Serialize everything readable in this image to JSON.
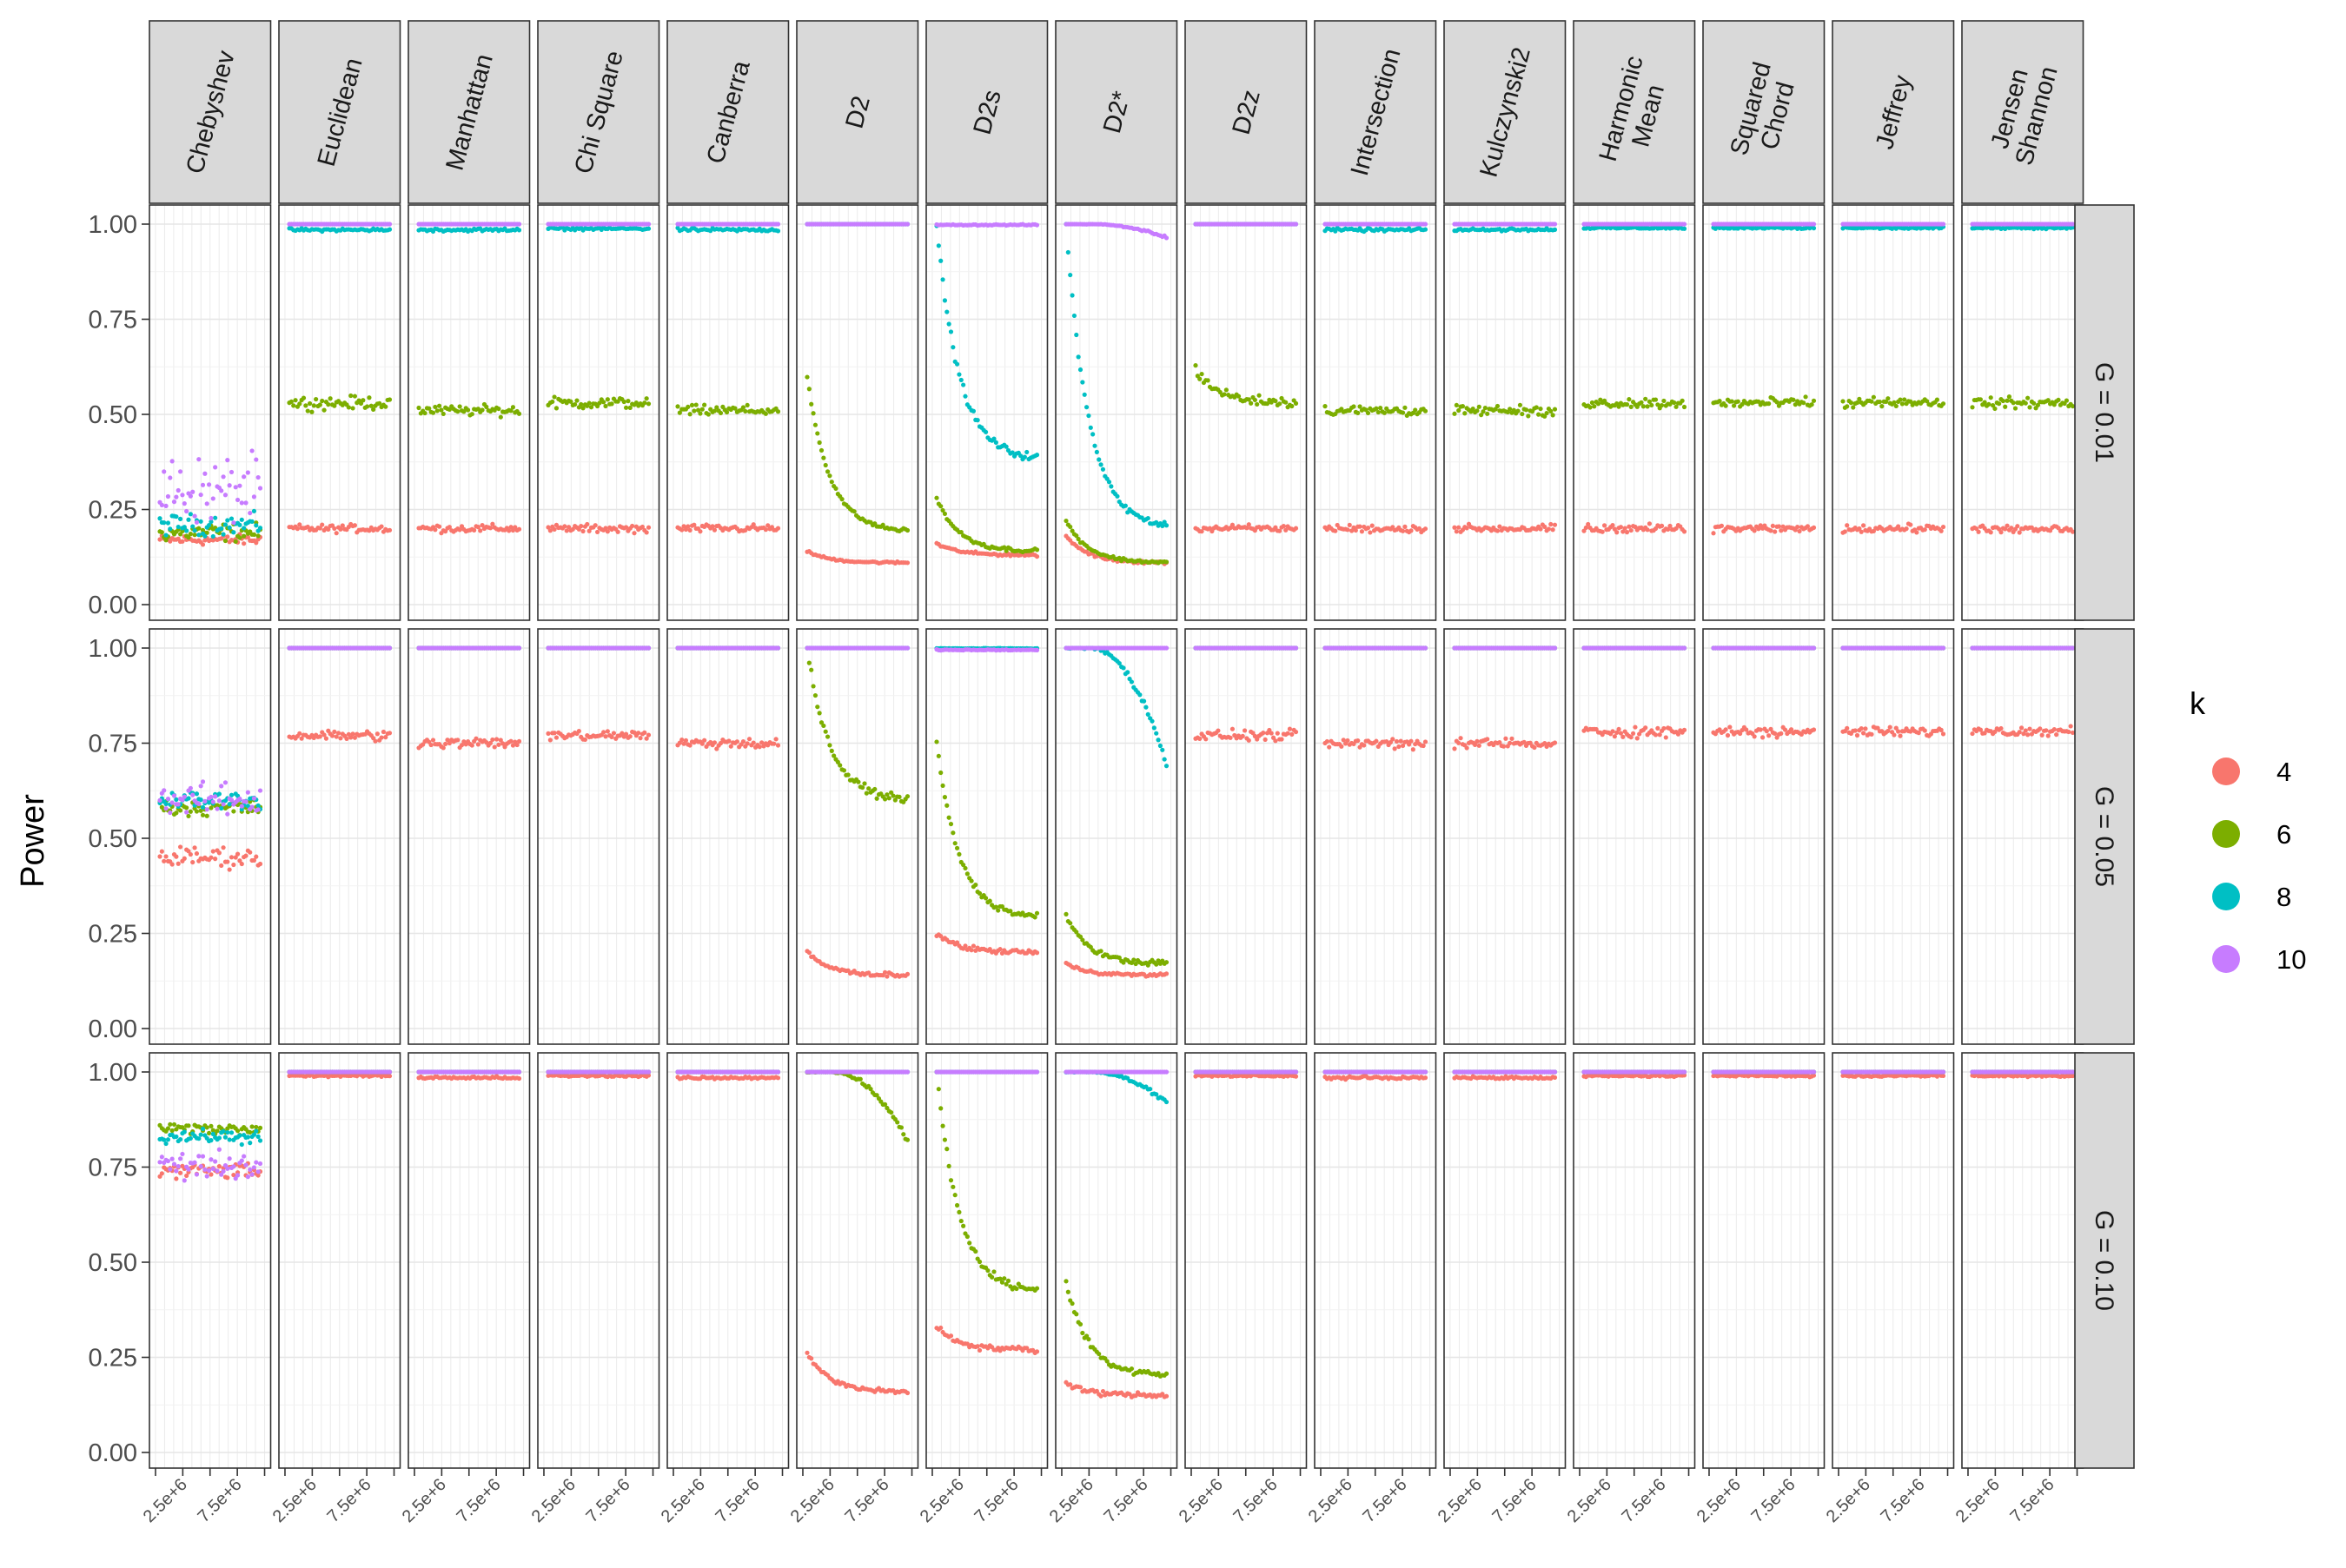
{
  "chart_data": {
    "type": "scatter",
    "facet_layout": "grid",
    "ylabel": "Power",
    "xlabel": "",
    "ylim": [
      0,
      1
    ],
    "xlim": [
      0,
      10000000
    ],
    "y_ticks": [
      "0.00",
      "0.25",
      "0.50",
      "0.75",
      "1.00"
    ],
    "y_tick_values": [
      0,
      0.25,
      0.5,
      0.75,
      1
    ],
    "x_ticks": [
      "2.5e+6",
      "7.5e+6"
    ],
    "x_tick_values": [
      2500000,
      7500000
    ],
    "grid": true,
    "columns": [
      "Chebyshev",
      "Euclidean",
      "Manhattan",
      "Chi Square",
      "Canberra",
      "D2",
      "D2s",
      "D2*",
      "D2z",
      "Intersection",
      "Kulczynski2",
      "Harmonic\nMean",
      "Squared\nChord",
      "Jeffrey",
      "Jensen\nShannon"
    ],
    "rows": [
      "G = 0.01",
      "G = 0.05",
      "G = 0.10"
    ],
    "legend": {
      "title": "k",
      "position": "right",
      "items": [
        {
          "label": "4",
          "color": "#F8766D"
        },
        {
          "label": "6",
          "color": "#7CAE00"
        },
        {
          "label": "8",
          "color": "#00BFC4"
        },
        {
          "label": "10",
          "color": "#C77CFF"
        }
      ]
    },
    "series_keys": [
      "4",
      "6",
      "8",
      "10"
    ],
    "description_of_x": "x runs from 0 to 1e7 with about 50 points per series",
    "curves": [
      [
        [
          [
            "flat",
            0.17,
            0.02
          ],
          [
            "flat",
            0.19,
            0.035
          ],
          [
            "flat",
            0.21,
            0.04
          ],
          [
            "flat",
            0.3,
            0.13
          ]
        ],
        [
          [
            "flat",
            0.2,
            0.015
          ],
          [
            "flat",
            0.53,
            0.025
          ],
          [
            "flat",
            0.985,
            0.006
          ],
          [
            "flat",
            1.0,
            0
          ]
        ],
        [
          [
            "flat",
            0.2,
            0.015
          ],
          [
            "flat",
            0.51,
            0.02
          ],
          [
            "flat",
            0.985,
            0.006
          ],
          [
            "flat",
            1.0,
            0
          ]
        ],
        [
          [
            "flat",
            0.2,
            0.015
          ],
          [
            "flat",
            0.53,
            0.022
          ],
          [
            "flat",
            0.988,
            0.005
          ],
          [
            "flat",
            1.0,
            0
          ]
        ],
        [
          [
            "flat",
            0.2,
            0.015
          ],
          [
            "flat",
            0.51,
            0.02
          ],
          [
            "flat",
            0.985,
            0.006
          ],
          [
            "flat",
            1.0,
            0
          ]
        ],
        [
          [
            "decay",
            0.14,
            0.11,
            0.004
          ],
          [
            "decay",
            0.6,
            0.19,
            0.008
          ],
          [
            "flat",
            1.0,
            0
          ],
          [
            "flat",
            1.0,
            0
          ]
        ],
        [
          [
            "decay",
            0.16,
            0.13,
            0.005
          ],
          [
            "decay",
            0.28,
            0.14,
            0.008
          ],
          [
            "decay",
            1.0,
            0.38,
            0.015
          ],
          [
            "flat",
            0.998,
            0.002
          ]
        ],
        [
          [
            "decay",
            0.18,
            0.11,
            0.006
          ],
          [
            "decay",
            0.22,
            0.11,
            0.006
          ],
          [
            "decay",
            1.0,
            0.2,
            0.012
          ],
          [
            "late",
            1.0,
            0.965,
            0.003
          ]
        ],
        [
          [
            "flat",
            0.2,
            0.015
          ],
          [
            "decay",
            0.62,
            0.53,
            0.02
          ],
          [
            "flat",
            1.0,
            0
          ],
          [
            "flat",
            1.0,
            0
          ]
        ],
        [
          [
            "flat",
            0.2,
            0.015
          ],
          [
            "flat",
            0.51,
            0.02
          ],
          [
            "flat",
            0.985,
            0.006
          ],
          [
            "flat",
            1.0,
            0
          ]
        ],
        [
          [
            "flat",
            0.2,
            0.015
          ],
          [
            "flat",
            0.51,
            0.02
          ],
          [
            "flat",
            0.985,
            0.006
          ],
          [
            "flat",
            1.0,
            0
          ]
        ],
        [
          [
            "flat",
            0.2,
            0.015
          ],
          [
            "flat",
            0.53,
            0.02
          ],
          [
            "flat",
            0.99,
            0.004
          ],
          [
            "flat",
            1.0,
            0
          ]
        ],
        [
          [
            "flat",
            0.2,
            0.015
          ],
          [
            "flat",
            0.53,
            0.02
          ],
          [
            "flat",
            0.99,
            0.004
          ],
          [
            "flat",
            1.0,
            0
          ]
        ],
        [
          [
            "flat",
            0.2,
            0.015
          ],
          [
            "flat",
            0.53,
            0.02
          ],
          [
            "flat",
            0.99,
            0.004
          ],
          [
            "flat",
            1.0,
            0
          ]
        ],
        [
          [
            "flat",
            0.2,
            0.015
          ],
          [
            "flat",
            0.53,
            0.02
          ],
          [
            "flat",
            0.99,
            0.004
          ],
          [
            "flat",
            1.0,
            0
          ]
        ]
      ],
      [
        [
          [
            "flat",
            0.45,
            0.04
          ],
          [
            "flat",
            0.58,
            0.03
          ],
          [
            "flat",
            0.6,
            0.035
          ],
          [
            "flat",
            0.6,
            0.06
          ]
        ],
        [
          [
            "flat",
            0.77,
            0.02
          ],
          [
            "flat",
            1.0,
            0
          ],
          [
            "flat",
            1.0,
            0
          ],
          [
            "flat",
            1.0,
            0
          ]
        ],
        [
          [
            "flat",
            0.75,
            0.02
          ],
          [
            "flat",
            1.0,
            0
          ],
          [
            "flat",
            1.0,
            0
          ],
          [
            "flat",
            1.0,
            0
          ]
        ],
        [
          [
            "flat",
            0.77,
            0.02
          ],
          [
            "flat",
            1.0,
            0
          ],
          [
            "flat",
            1.0,
            0
          ],
          [
            "flat",
            1.0,
            0
          ]
        ],
        [
          [
            "flat",
            0.75,
            0.02
          ],
          [
            "flat",
            1.0,
            0
          ],
          [
            "flat",
            1.0,
            0
          ],
          [
            "flat",
            1.0,
            0
          ]
        ],
        [
          [
            "decay",
            0.2,
            0.14,
            0.008
          ],
          [
            "decay",
            1.0,
            0.6,
            0.015
          ],
          [
            "flat",
            1.0,
            0
          ],
          [
            "flat",
            1.0,
            0
          ]
        ],
        [
          [
            "decay",
            0.25,
            0.2,
            0.01
          ],
          [
            "decay",
            0.75,
            0.29,
            0.012
          ],
          [
            "flat",
            0.999,
            0.001
          ],
          [
            "flat",
            0.995,
            0.002
          ]
        ],
        [
          [
            "decay",
            0.17,
            0.14,
            0.006
          ],
          [
            "decay",
            0.3,
            0.17,
            0.01
          ],
          [
            "late",
            1.0,
            0.7,
            0.015
          ],
          [
            "flat",
            1.0,
            0
          ]
        ],
        [
          [
            "flat",
            0.77,
            0.02
          ],
          [
            "flat",
            1.0,
            0
          ],
          [
            "flat",
            1.0,
            0
          ],
          [
            "flat",
            1.0,
            0
          ]
        ],
        [
          [
            "flat",
            0.75,
            0.02
          ],
          [
            "flat",
            1.0,
            0
          ],
          [
            "flat",
            1.0,
            0
          ],
          [
            "flat",
            1.0,
            0
          ]
        ],
        [
          [
            "flat",
            0.75,
            0.02
          ],
          [
            "flat",
            1.0,
            0
          ],
          [
            "flat",
            1.0,
            0
          ],
          [
            "flat",
            1.0,
            0
          ]
        ],
        [
          [
            "flat",
            0.78,
            0.02
          ],
          [
            "flat",
            1.0,
            0
          ],
          [
            "flat",
            1.0,
            0
          ],
          [
            "flat",
            1.0,
            0
          ]
        ],
        [
          [
            "flat",
            0.78,
            0.02
          ],
          [
            "flat",
            1.0,
            0
          ],
          [
            "flat",
            1.0,
            0
          ],
          [
            "flat",
            1.0,
            0
          ]
        ],
        [
          [
            "flat",
            0.78,
            0.02
          ],
          [
            "flat",
            1.0,
            0
          ],
          [
            "flat",
            1.0,
            0
          ],
          [
            "flat",
            1.0,
            0
          ]
        ],
        [
          [
            "flat",
            0.78,
            0.02
          ],
          [
            "flat",
            1.0,
            0
          ],
          [
            "flat",
            1.0,
            0
          ],
          [
            "flat",
            1.0,
            0
          ]
        ]
      ],
      [
        [
          [
            "flat",
            0.74,
            0.03
          ],
          [
            "flat",
            0.85,
            0.02
          ],
          [
            "flat",
            0.83,
            0.025
          ],
          [
            "flat",
            0.75,
            0.06
          ]
        ],
        [
          [
            "flat",
            0.99,
            0.004
          ],
          [
            "flat",
            1.0,
            0
          ],
          [
            "flat",
            1.0,
            0
          ],
          [
            "flat",
            1.0,
            0
          ]
        ],
        [
          [
            "flat",
            0.985,
            0.005
          ],
          [
            "flat",
            1.0,
            0
          ],
          [
            "flat",
            1.0,
            0
          ],
          [
            "flat",
            1.0,
            0
          ]
        ],
        [
          [
            "flat",
            0.99,
            0.004
          ],
          [
            "flat",
            1.0,
            0
          ],
          [
            "flat",
            1.0,
            0
          ],
          [
            "flat",
            1.0,
            0
          ]
        ],
        [
          [
            "flat",
            0.985,
            0.005
          ],
          [
            "flat",
            1.0,
            0
          ],
          [
            "flat",
            1.0,
            0
          ],
          [
            "flat",
            1.0,
            0
          ]
        ],
        [
          [
            "decay",
            0.26,
            0.16,
            0.008
          ],
          [
            "late",
            1.0,
            0.82,
            0.012
          ],
          [
            "flat",
            1.0,
            0
          ],
          [
            "flat",
            1.0,
            0
          ]
        ],
        [
          [
            "decay",
            0.33,
            0.27,
            0.012
          ],
          [
            "decay",
            1.0,
            0.42,
            0.015
          ],
          [
            "flat",
            1.0,
            0
          ],
          [
            "flat",
            1.0,
            0
          ]
        ],
        [
          [
            "decay",
            0.18,
            0.15,
            0.01
          ],
          [
            "decay",
            0.45,
            0.2,
            0.015
          ],
          [
            "late",
            1.0,
            0.92,
            0.006
          ],
          [
            "flat",
            1.0,
            0
          ]
        ],
        [
          [
            "flat",
            0.99,
            0.004
          ],
          [
            "flat",
            1.0,
            0
          ],
          [
            "flat",
            1.0,
            0
          ],
          [
            "flat",
            1.0,
            0
          ]
        ],
        [
          [
            "flat",
            0.985,
            0.005
          ],
          [
            "flat",
            1.0,
            0
          ],
          [
            "flat",
            1.0,
            0
          ],
          [
            "flat",
            1.0,
            0
          ]
        ],
        [
          [
            "flat",
            0.985,
            0.005
          ],
          [
            "flat",
            1.0,
            0
          ],
          [
            "flat",
            1.0,
            0
          ],
          [
            "flat",
            1.0,
            0
          ]
        ],
        [
          [
            "flat",
            0.99,
            0.004
          ],
          [
            "flat",
            1.0,
            0
          ],
          [
            "flat",
            1.0,
            0
          ],
          [
            "flat",
            1.0,
            0
          ]
        ],
        [
          [
            "flat",
            0.99,
            0.004
          ],
          [
            "flat",
            1.0,
            0
          ],
          [
            "flat",
            1.0,
            0
          ],
          [
            "flat",
            1.0,
            0
          ]
        ],
        [
          [
            "flat",
            0.99,
            0.004
          ],
          [
            "flat",
            1.0,
            0
          ],
          [
            "flat",
            1.0,
            0
          ],
          [
            "flat",
            1.0,
            0
          ]
        ],
        [
          [
            "flat",
            0.99,
            0.004
          ],
          [
            "flat",
            1.0,
            0
          ],
          [
            "flat",
            1.0,
            0
          ],
          [
            "flat",
            1.0,
            0
          ]
        ]
      ]
    ]
  }
}
